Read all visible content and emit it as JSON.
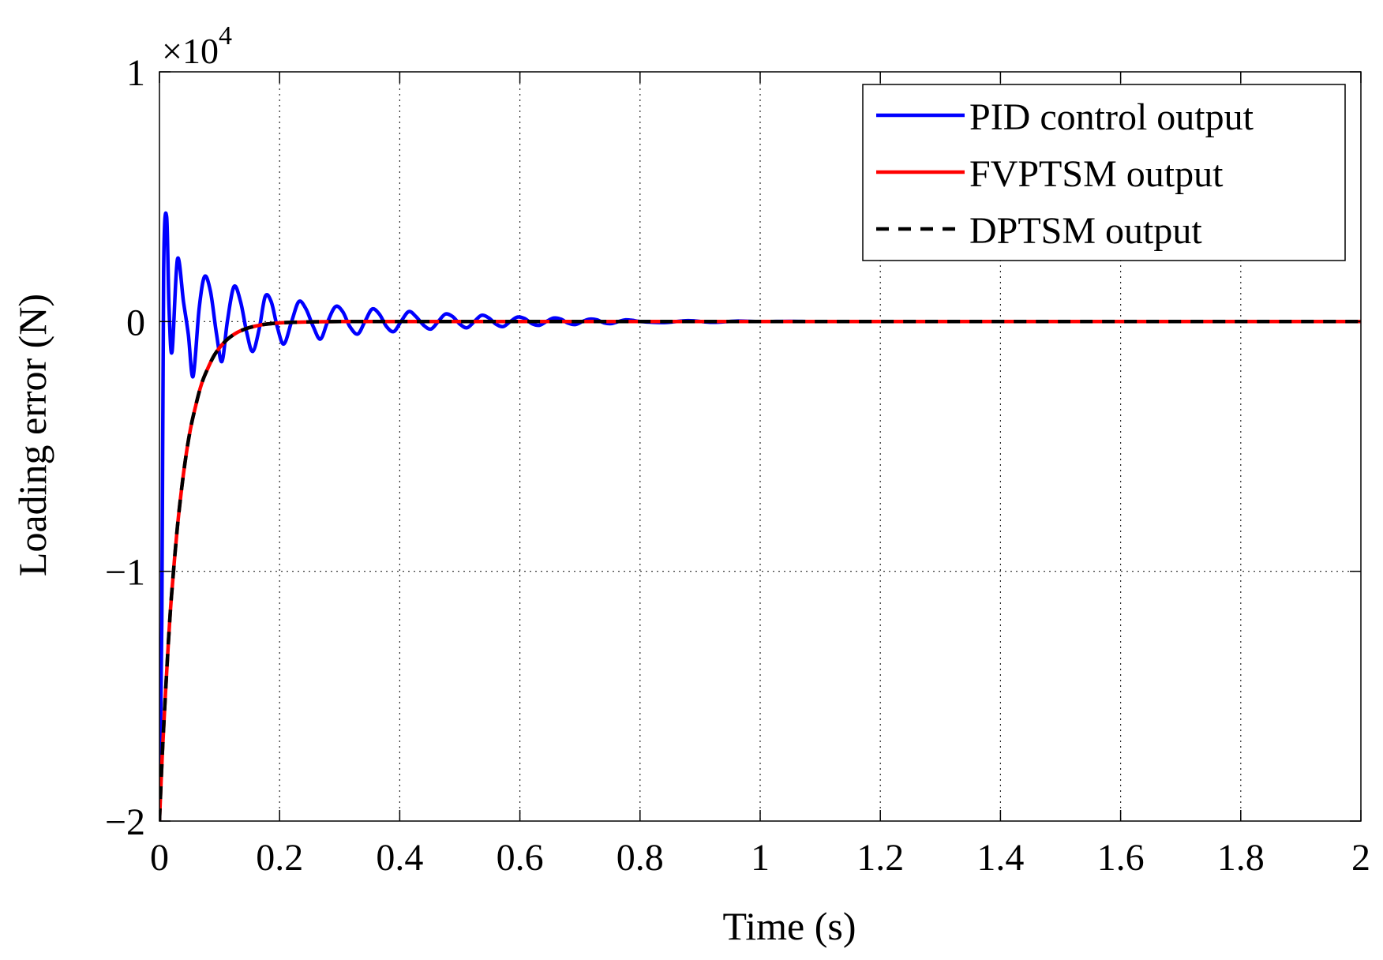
{
  "chart_data": {
    "type": "line",
    "title": "",
    "xlabel": "Time (s)",
    "ylabel": "Loading error (N)",
    "y_exponent_label": "×10",
    "y_exponent_power": "4",
    "xlim": [
      0,
      2
    ],
    "ylim": [
      -2,
      1
    ],
    "xticks": [
      0,
      0.2,
      0.4,
      0.6,
      0.8,
      1,
      1.2,
      1.4,
      1.6,
      1.8,
      2
    ],
    "xtick_labels": [
      "0",
      "0.2",
      "0.4",
      "0.6",
      "0.8",
      "1",
      "1.2",
      "1.4",
      "1.6",
      "1.8",
      "2"
    ],
    "yticks": [
      -2,
      -1,
      0,
      1
    ],
    "ytick_labels": [
      "−2",
      "−1",
      "0",
      "1"
    ],
    "y_units_note": "values in units of 10^4 N",
    "grid": true,
    "legend_position": "top-right",
    "series": [
      {
        "name": "PID control output",
        "color": "#0000ff",
        "dash": "solid",
        "x": [
          0,
          0.004,
          0.007,
          0.012,
          0.016,
          0.021,
          0.03,
          0.04,
          0.048,
          0.056,
          0.066,
          0.075,
          0.085,
          0.095,
          0.104,
          0.113,
          0.124,
          0.135,
          0.145,
          0.155,
          0.166,
          0.176,
          0.186,
          0.196,
          0.207,
          0.22,
          0.232,
          0.244,
          0.256,
          0.268,
          0.28,
          0.293,
          0.305,
          0.317,
          0.33,
          0.342,
          0.354,
          0.366,
          0.378,
          0.39,
          0.402,
          0.415,
          0.427,
          0.44,
          0.452,
          0.464,
          0.476,
          0.488,
          0.5,
          0.512,
          0.524,
          0.536,
          0.548,
          0.56,
          0.572,
          0.584,
          0.596,
          0.608,
          0.62,
          0.632,
          0.644,
          0.656,
          0.668,
          0.68,
          0.692,
          0.704,
          0.716,
          0.728,
          0.74,
          0.752,
          0.764,
          0.776,
          0.788,
          0.8,
          0.84,
          0.88,
          0.92,
          0.96,
          1.0,
          1.05,
          1.1,
          1.2,
          1.4,
          1.6,
          1.8,
          2.0
        ],
        "y": [
          -2.0,
          -1.2,
          0.2,
          0.42,
          0.05,
          -0.12,
          0.25,
          0.08,
          -0.05,
          -0.22,
          0.05,
          0.18,
          0.12,
          -0.05,
          -0.16,
          0.0,
          0.14,
          0.08,
          -0.04,
          -0.12,
          -0.03,
          0.1,
          0.08,
          -0.02,
          -0.09,
          0.0,
          0.08,
          0.05,
          -0.02,
          -0.07,
          0.0,
          0.06,
          0.04,
          -0.02,
          -0.05,
          0.0,
          0.05,
          0.03,
          -0.02,
          -0.04,
          0.0,
          0.04,
          0.02,
          -0.015,
          -0.03,
          0.0,
          0.03,
          0.02,
          -0.01,
          -0.025,
          0.0,
          0.025,
          0.015,
          -0.01,
          -0.02,
          0.0,
          0.018,
          0.012,
          -0.008,
          -0.015,
          0.0,
          0.014,
          0.01,
          -0.006,
          -0.012,
          0.0,
          0.01,
          0.007,
          -0.005,
          -0.008,
          0.0,
          0.007,
          0.005,
          0.0,
          -0.004,
          0.004,
          -0.003,
          0.002,
          0.0,
          0.001,
          0.0,
          0.0,
          0.0,
          0.0,
          0.0,
          0.0
        ]
      },
      {
        "name": "FVPTSM output",
        "color": "#ff0000",
        "dash": "solid",
        "x": [
          0,
          0.005,
          0.01,
          0.015,
          0.02,
          0.03,
          0.04,
          0.05,
          0.06,
          0.07,
          0.08,
          0.09,
          0.1,
          0.11,
          0.12,
          0.13,
          0.14,
          0.15,
          0.16,
          0.17,
          0.18,
          0.19,
          0.2,
          0.22,
          0.25,
          0.3,
          0.4,
          0.6,
          1.0,
          1.5,
          2.0
        ],
        "y": [
          -2.0,
          -1.72,
          -1.49,
          -1.28,
          -1.1,
          -0.82,
          -0.61,
          -0.45,
          -0.34,
          -0.25,
          -0.19,
          -0.14,
          -0.105,
          -0.078,
          -0.058,
          -0.043,
          -0.032,
          -0.024,
          -0.018,
          -0.013,
          -0.0098,
          -0.0073,
          -0.0054,
          -0.003,
          -0.0012,
          0.0,
          0.0,
          0.0,
          0.0,
          0.0,
          0.0
        ]
      },
      {
        "name": "DPTSM output",
        "color": "#000000",
        "dash": "dashed",
        "x": [
          0,
          0.005,
          0.01,
          0.015,
          0.02,
          0.03,
          0.04,
          0.05,
          0.06,
          0.07,
          0.08,
          0.09,
          0.1,
          0.11,
          0.12,
          0.13,
          0.14,
          0.15,
          0.16,
          0.17,
          0.18,
          0.19,
          0.2,
          0.22,
          0.25,
          0.3,
          0.4,
          0.6,
          1.0,
          1.5,
          2.0
        ],
        "y": [
          -2.0,
          -1.72,
          -1.49,
          -1.28,
          -1.1,
          -0.82,
          -0.61,
          -0.45,
          -0.34,
          -0.25,
          -0.19,
          -0.14,
          -0.105,
          -0.078,
          -0.058,
          -0.043,
          -0.032,
          -0.024,
          -0.018,
          -0.013,
          -0.0098,
          -0.0073,
          -0.0054,
          -0.003,
          -0.0012,
          0.0,
          0.0,
          0.0,
          0.0,
          0.0,
          0.0
        ]
      }
    ]
  }
}
